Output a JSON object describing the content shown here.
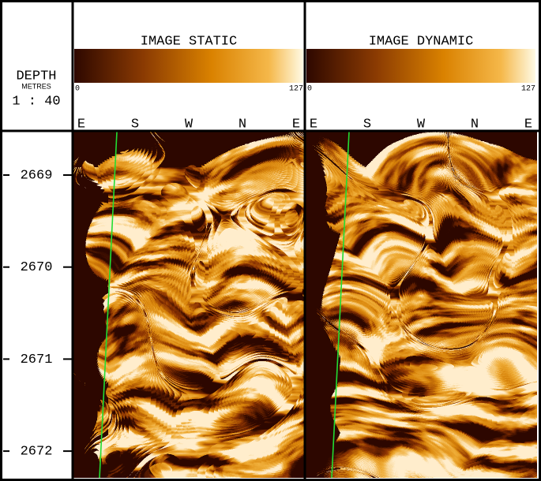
{
  "depth_track": {
    "title": "DEPTH",
    "unit": "METRES",
    "scale": "1 : 40",
    "ticks": [
      "2669",
      "2670",
      "2671",
      "2672"
    ]
  },
  "tracks": [
    {
      "title": "IMAGE STATIC",
      "scale_min": "0",
      "scale_max": "127",
      "directions": [
        "E",
        "S",
        "W",
        "N",
        "E"
      ]
    },
    {
      "title": "IMAGE DYNAMIC",
      "scale_min": "0",
      "scale_max": "127",
      "directions": [
        "E",
        "S",
        "W",
        "N",
        "E"
      ]
    }
  ]
}
